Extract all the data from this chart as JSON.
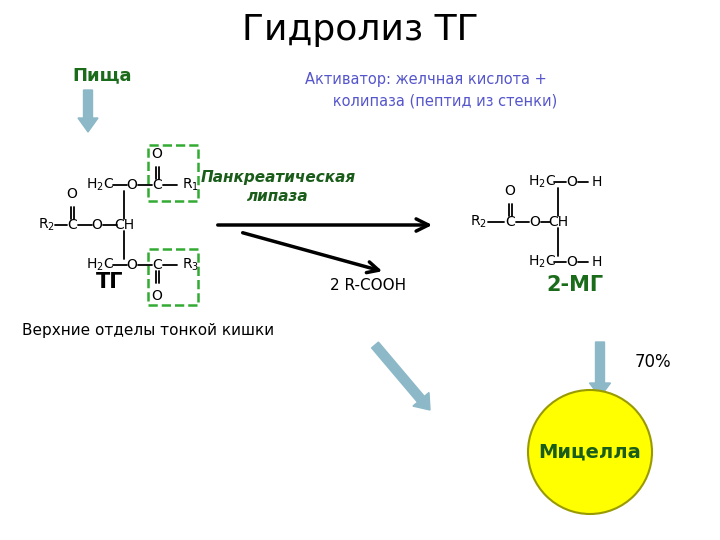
{
  "title": "Гидролиз ТГ",
  "title_fontsize": 26,
  "background_color": "#ffffff",
  "pishcha_label": "Пища",
  "pishcha_color": "#1a6b1a",
  "activator_text": "Активатор: желчная кислота +\n      колипаза (пептид из стенки)",
  "activator_color": "#5555cc",
  "enzyme_text": "Панкреатическая\nлипаза",
  "tg_label": "ТГ",
  "mg_label": "2-МГ",
  "mg_color": "#1a6b1a",
  "rcooh_label": "2 R-COOH",
  "verhnie_text": "Верхние отделы тонкой кишки",
  "micella_label": "Мицелла",
  "micella_color": "#ffff00",
  "micella_text_color": "#1a5c1a",
  "micella_edge_color": "#999900",
  "percent_label": "70%",
  "arrow_color": "#8cb8c8",
  "dashed_rect_color": "#33aa33",
  "struct_color": "#000000",
  "struct_fontsize": 10
}
